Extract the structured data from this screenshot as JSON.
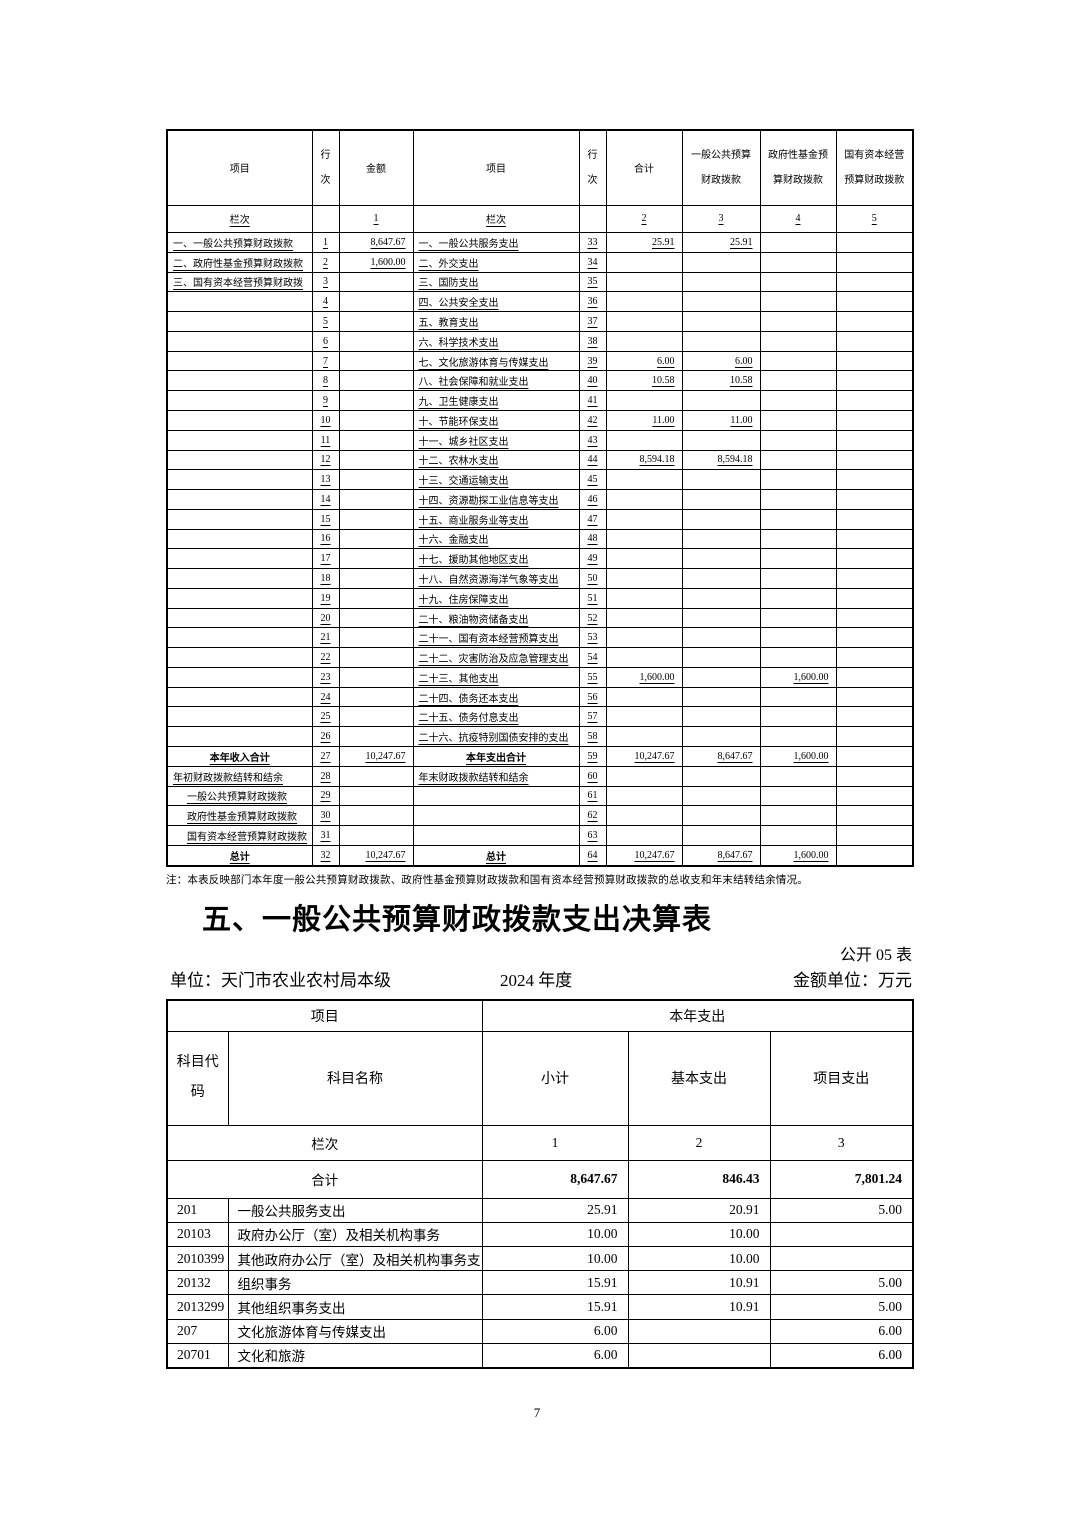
{
  "document": {
    "note": "注：本表反映部门本年度一般公共预算财政拨款、政府性基金预算财政拨款和国有资本经营预算财政拨款的总收支和年末结转结余情况。",
    "section_title": "五、一般公共预算财政拨款支出决算表",
    "table_code": "公开 05 表",
    "org_unit": "单位：天门市农业农村局本级",
    "year": "2024 年度",
    "money_unit": "金额单位：万元",
    "page_number": "7"
  },
  "table1": {
    "header": {
      "item": "项目",
      "line_no": [
        "行",
        "次"
      ],
      "amount": "金额",
      "item2": "项目",
      "line_no2": [
        "行",
        "次"
      ],
      "total": "合计",
      "general_budget": [
        "一般公共预算",
        "财政拨款"
      ],
      "govt_fund": [
        "政府性基金预",
        "算财政拨款"
      ],
      "state_capital": [
        "国有资本经营",
        "预算财政拨款"
      ]
    },
    "lanci": {
      "label1": "栏次",
      "col1": "1",
      "label2": "栏次",
      "col2": "2",
      "col3": "3",
      "col4": "4",
      "col5": "5"
    },
    "rows": [
      {
        "c": [
          "一、一般公共预算财政拨款",
          "1",
          "8,647.67",
          "一、一般公共服务支出",
          "33",
          "25.91",
          "25.91",
          "",
          ""
        ]
      },
      {
        "c": [
          "二、政府性基金预算财政拨款",
          "2",
          "1,600.00",
          "二、外交支出",
          "34",
          "",
          "",
          "",
          ""
        ]
      },
      {
        "c": [
          "三、国有资本经营预算财政拨",
          "3",
          "",
          "三、国防支出",
          "35",
          "",
          "",
          "",
          ""
        ]
      },
      {
        "c": [
          "",
          "4",
          "",
          "四、公共安全支出",
          "36",
          "",
          "",
          "",
          ""
        ]
      },
      {
        "c": [
          "",
          "5",
          "",
          "五、教育支出",
          "37",
          "",
          "",
          "",
          ""
        ]
      },
      {
        "c": [
          "",
          "6",
          "",
          "六、科学技术支出",
          "38",
          "",
          "",
          "",
          ""
        ]
      },
      {
        "c": [
          "",
          "7",
          "",
          "七、文化旅游体育与传媒支出",
          "39",
          "6.00",
          "6.00",
          "",
          ""
        ]
      },
      {
        "c": [
          "",
          "8",
          "",
          "八、社会保障和就业支出",
          "40",
          "10.58",
          "10.58",
          "",
          ""
        ]
      },
      {
        "c": [
          "",
          "9",
          "",
          "九、卫生健康支出",
          "41",
          "",
          "",
          "",
          ""
        ]
      },
      {
        "c": [
          "",
          "10",
          "",
          "十、节能环保支出",
          "42",
          "11.00",
          "11.00",
          "",
          ""
        ]
      },
      {
        "c": [
          "",
          "11",
          "",
          "十一、城乡社区支出",
          "43",
          "",
          "",
          "",
          ""
        ]
      },
      {
        "c": [
          "",
          "12",
          "",
          "十二、农林水支出",
          "44",
          "8,594.18",
          "8,594.18",
          "",
          ""
        ]
      },
      {
        "c": [
          "",
          "13",
          "",
          "十三、交通运输支出",
          "45",
          "",
          "",
          "",
          ""
        ]
      },
      {
        "c": [
          "",
          "14",
          "",
          "十四、资源勘探工业信息等支出",
          "46",
          "",
          "",
          "",
          ""
        ]
      },
      {
        "c": [
          "",
          "15",
          "",
          "十五、商业服务业等支出",
          "47",
          "",
          "",
          "",
          ""
        ]
      },
      {
        "c": [
          "",
          "16",
          "",
          "十六、金融支出",
          "48",
          "",
          "",
          "",
          ""
        ]
      },
      {
        "c": [
          "",
          "17",
          "",
          "十七、援助其他地区支出",
          "49",
          "",
          "",
          "",
          ""
        ]
      },
      {
        "c": [
          "",
          "18",
          "",
          "十八、自然资源海洋气象等支出",
          "50",
          "",
          "",
          "",
          ""
        ]
      },
      {
        "c": [
          "",
          "19",
          "",
          "十九、住房保障支出",
          "51",
          "",
          "",
          "",
          ""
        ]
      },
      {
        "c": [
          "",
          "20",
          "",
          "二十、粮油物资储备支出",
          "52",
          "",
          "",
          "",
          ""
        ]
      },
      {
        "c": [
          "",
          "21",
          "",
          "二十一、国有资本经营预算支出",
          "53",
          "",
          "",
          "",
          ""
        ]
      },
      {
        "c": [
          "",
          "22",
          "",
          "二十二、灾害防治及应急管理支出",
          "54",
          "",
          "",
          "",
          ""
        ]
      },
      {
        "c": [
          "",
          "23",
          "",
          "二十三、其他支出",
          "55",
          "1,600.00",
          "",
          "1,600.00",
          ""
        ]
      },
      {
        "c": [
          "",
          "24",
          "",
          "二十四、债务还本支出",
          "56",
          "",
          "",
          "",
          ""
        ]
      },
      {
        "c": [
          "",
          "25",
          "",
          "二十五、债务付息支出",
          "57",
          "",
          "",
          "",
          ""
        ]
      },
      {
        "c": [
          "",
          "26",
          "",
          "二十六、抗疫特别国债安排的支出",
          "58",
          "",
          "",
          "",
          ""
        ]
      },
      {
        "c": [
          "本年收入合计",
          "27",
          "10,247.67",
          "本年支出合计",
          "59",
          "10,247.67",
          "8,647.67",
          "1,600.00",
          ""
        ],
        "bold": true
      },
      {
        "c": [
          "年初财政拨款结转和结余",
          "28",
          "",
          "年末财政拨款结转和结余",
          "60",
          "",
          "",
          "",
          ""
        ]
      },
      {
        "c": [
          "一般公共预算财政拨款",
          "29",
          "",
          "",
          "61",
          "",
          "",
          "",
          ""
        ],
        "indent": true
      },
      {
        "c": [
          "政府性基金预算财政拨款",
          "30",
          "",
          "",
          "62",
          "",
          "",
          "",
          ""
        ],
        "indent": true
      },
      {
        "c": [
          "国有资本经营预算财政拨款",
          "31",
          "",
          "",
          "63",
          "",
          "",
          "",
          ""
        ],
        "indent": true
      },
      {
        "c": [
          "总计",
          "32",
          "10,247.67",
          "总计",
          "64",
          "10,247.67",
          "8,647.67",
          "1,600.00",
          ""
        ],
        "bold": true
      }
    ]
  },
  "table2": {
    "header_item": "项目",
    "header_expense": "本年支出",
    "col_code": [
      "科目代",
      "码"
    ],
    "col_name": "科目名称",
    "col_subtotal": "小计",
    "col_basic": "基本支出",
    "col_project": "项目支出",
    "lanci": {
      "label": "栏次",
      "col1": "1",
      "col2": "2",
      "col3": "3"
    },
    "total_row": {
      "label": "合计",
      "subtotal": "8,647.67",
      "basic": "846.43",
      "project": "7,801.24"
    },
    "rows": [
      {
        "c": [
          "201",
          "一般公共服务支出",
          "25.91",
          "20.91",
          "5.00"
        ]
      },
      {
        "c": [
          "20103",
          "政府办公厅（室）及相关机构事务",
          "10.00",
          "10.00",
          ""
        ]
      },
      {
        "c": [
          "2010399",
          "其他政府办公厅（室）及相关机构事务支",
          "10.00",
          "10.00",
          ""
        ]
      },
      {
        "c": [
          "20132",
          "组织事务",
          "15.91",
          "10.91",
          "5.00"
        ]
      },
      {
        "c": [
          "2013299",
          "其他组织事务支出",
          "15.91",
          "10.91",
          "5.00"
        ]
      },
      {
        "c": [
          "207",
          "文化旅游体育与传媒支出",
          "6.00",
          "",
          "6.00"
        ]
      },
      {
        "c": [
          "20701",
          "文化和旅游",
          "6.00",
          "",
          "6.00"
        ]
      }
    ]
  }
}
